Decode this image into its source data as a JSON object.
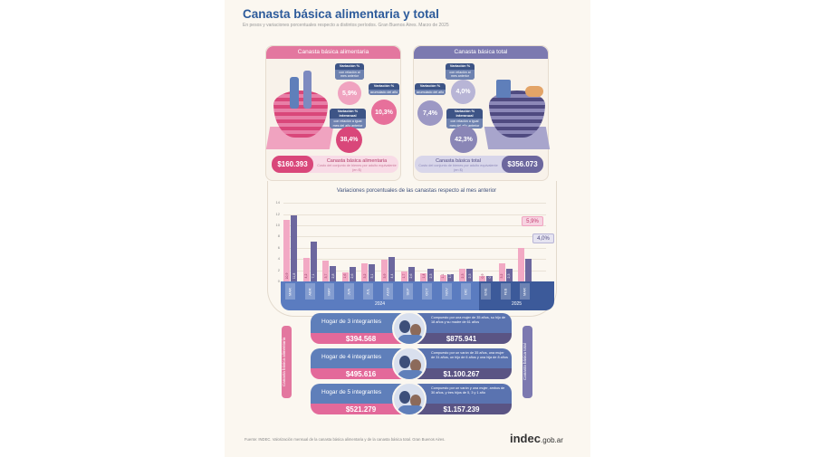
{
  "header": {
    "title": "Canasta básica alimentaria y total",
    "subtitle": "En pesos y variaciones porcentuales respecto a distintos períodos. Gran Buenos Aires. Marzo de 2025"
  },
  "cba": {
    "title": "Canasta básica alimentaria",
    "monthly": {
      "label": "Variación %",
      "desc": "con relación al mes anterior",
      "value": "5,9%"
    },
    "ytd": {
      "label": "Variación %",
      "desc": "acumulado del año",
      "value": "10,3%"
    },
    "yoy": {
      "label": "Variación % interanual",
      "desc": "con relación a igual mes del año anterior",
      "value": "38,4%"
    },
    "price": "$160.393",
    "price_label": "Canasta básica alimentaria",
    "price_desc": "Costo del conjunto de bienes por adulto equivalente (en $)"
  },
  "cbt": {
    "title": "Canasta básica total",
    "monthly": {
      "label": "Variación %",
      "desc": "con relación al mes anterior",
      "value": "4,0%"
    },
    "ytd": {
      "label": "Variación %",
      "desc": "acumulado del año",
      "value": "7,4%"
    },
    "yoy": {
      "label": "Variación % interanual",
      "desc": "con relación a igual mes del año anterior",
      "value": "42,3%"
    },
    "price": "$356.073",
    "price_label": "Canasta básica total",
    "price_desc": "Costo del conjunto de bienes por adulto equivalente (en $)"
  },
  "chart_data": {
    "type": "bar",
    "title": "Variaciones porcentuales de las canastas respecto al mes anterior",
    "categories": [
      "MAR",
      "ABR",
      "MAY",
      "JUN",
      "JUL",
      "AGO",
      "SEP",
      "OCT",
      "NOV",
      "DIC",
      "ENE",
      "FEB",
      "MAR"
    ],
    "years": [
      {
        "label": "2024",
        "count": 10
      },
      {
        "label": "2025",
        "count": 3
      }
    ],
    "series": [
      {
        "name": "Canasta básica alimentaria",
        "color": "#f2a9c4",
        "values": [
          10.9,
          4.2,
          3.7,
          1.6,
          3.2,
          3.9,
          1.7,
          1.4,
          1.1,
          2.3,
          0.9,
          3.2,
          5.9
        ]
      },
      {
        "name": "Canasta básica total",
        "color": "#6c679e",
        "values": [
          11.8,
          7.1,
          2.8,
          2.6,
          3.1,
          4.4,
          2.6,
          2.3,
          1.3,
          2.3,
          0.9,
          2.3,
          4.0
        ]
      }
    ],
    "value_labels": [
      [
        "10,9",
        "4,2",
        "3,7",
        "1,6",
        "3,2",
        "3,9",
        "1,7",
        "1,4",
        "1,1",
        "2,3",
        "0,9",
        "3,2"
      ],
      [
        "11,8",
        "7,1",
        "2,8",
        "2,6",
        "3,1",
        "4,4",
        "2,6",
        "2,3",
        "1,3",
        "2,3",
        "0,9",
        "2,3"
      ]
    ],
    "callouts": [
      "5,9%",
      "4,0%"
    ],
    "yticks": [
      0,
      2,
      4,
      6,
      8,
      10,
      12,
      14
    ],
    "ylim": [
      0,
      14
    ]
  },
  "households": {
    "left_label": "Canasta básica alimentaria",
    "right_label": "Canasta básica total",
    "rows": [
      {
        "title": "Hogar de 3 integrantes",
        "cba": "$394.568",
        "cbt": "$875.941",
        "desc": "Compuesto por una mujer de 35 años, su hijo de 18 años y su madre de 61 años"
      },
      {
        "title": "Hogar de 4 integrantes",
        "cba": "$495.616",
        "cbt": "$1.100.267",
        "desc": "Compuesto por un varón de 35 años, una mujer de 31 años, un hijo de 6 años y una hija de 8 años"
      },
      {
        "title": "Hogar de 5 integrantes",
        "cba": "$521.279",
        "cbt": "$1.157.239",
        "desc": "Compuesto por un varón y una mujer, ambos de 30 años, y tres hijos de 5, 3 y 1 año"
      }
    ]
  },
  "footer": {
    "source": "Fuente: INDEC. Valorización mensual de la canasta básica alimentaria y de la canasta básica total. Gran Buenos Aires.",
    "logo": "indec",
    "logo_suffix": ".gob.ar"
  }
}
